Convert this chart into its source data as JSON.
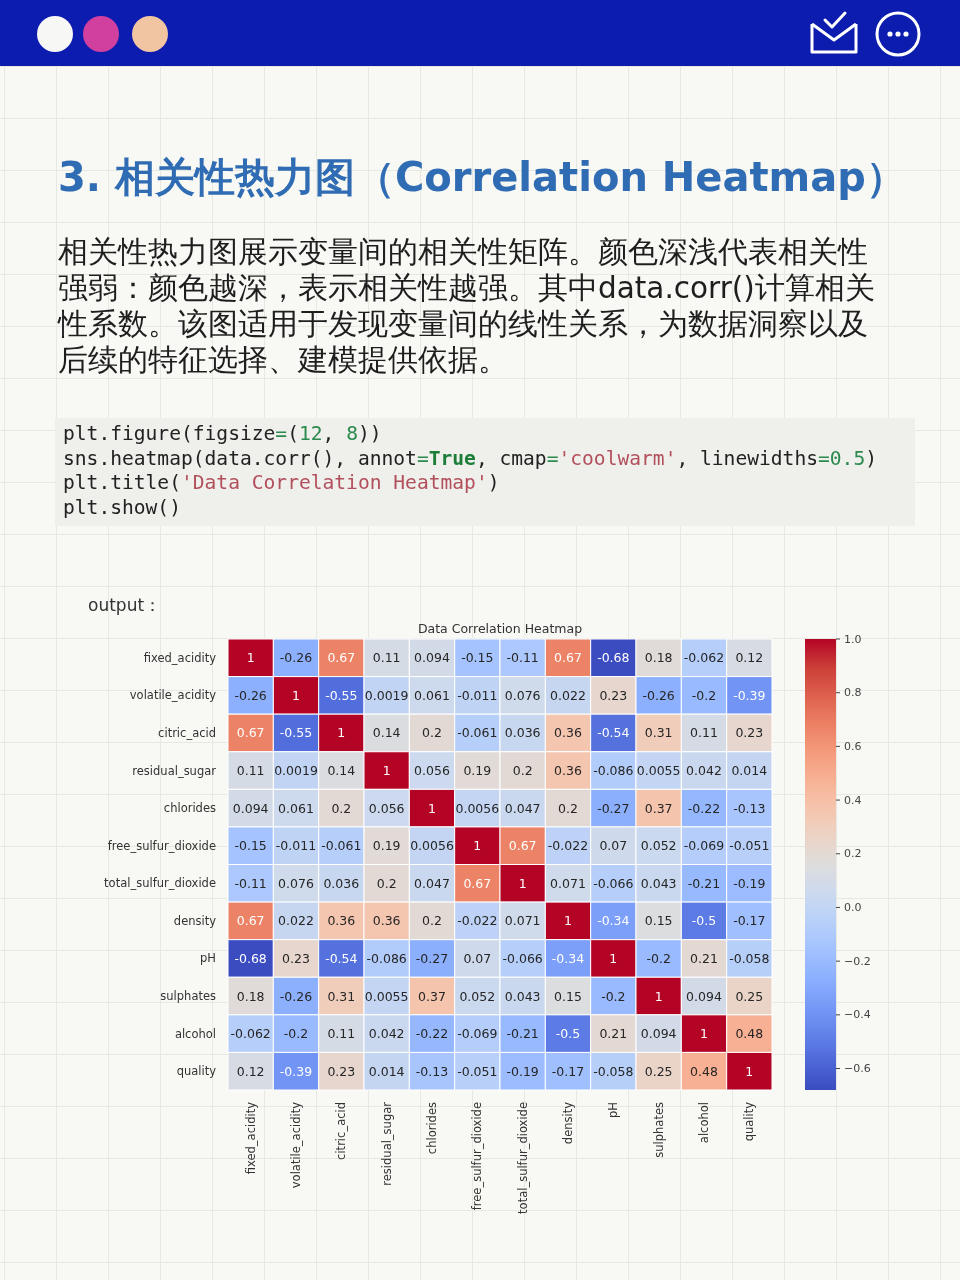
{
  "chart_data": {
    "type": "heatmap",
    "title": "Data Correlation Heatmap",
    "categories": [
      "fixed_acidity",
      "volatile_acidity",
      "citric_acid",
      "residual_sugar",
      "chlorides",
      "free_sulfur_dioxide",
      "total_sulfur_dioxide",
      "density",
      "pH",
      "sulphates",
      "alcohol",
      "quality"
    ],
    "y_categories": [
      "fixed_acidity",
      "volatile_acidity",
      "citric_acid",
      "residual_sugar",
      "chlorides",
      "free_sulfur_dioxide",
      "total_sulfur_dioxide",
      "density",
      "pH",
      "sulphates",
      "alcohol",
      "quality"
    ],
    "cells": [
      [
        1,
        -0.26,
        0.67,
        0.11,
        0.094,
        -0.15,
        -0.11,
        0.67,
        -0.68,
        0.18,
        -0.062,
        0.12
      ],
      [
        -0.26,
        1,
        -0.55,
        0.0019,
        0.061,
        -0.011,
        0.076,
        0.022,
        0.23,
        -0.26,
        -0.2,
        -0.39
      ],
      [
        0.67,
        -0.55,
        1,
        0.14,
        0.2,
        -0.061,
        0.036,
        0.36,
        -0.54,
        0.31,
        0.11,
        0.23
      ],
      [
        0.11,
        0.0019,
        0.14,
        1,
        0.056,
        0.19,
        0.2,
        0.36,
        -0.086,
        0.0055,
        0.042,
        0.014
      ],
      [
        0.094,
        0.061,
        0.2,
        0.056,
        1,
        0.0056,
        0.047,
        0.2,
        -0.27,
        0.37,
        -0.22,
        -0.13
      ],
      [
        -0.15,
        -0.011,
        -0.061,
        0.19,
        0.0056,
        1,
        0.67,
        -0.022,
        0.07,
        0.052,
        -0.069,
        -0.051
      ],
      [
        -0.11,
        0.076,
        0.036,
        0.2,
        0.047,
        0.67,
        1,
        0.071,
        -0.066,
        0.043,
        -0.21,
        -0.19
      ],
      [
        0.67,
        0.022,
        0.36,
        0.36,
        0.2,
        -0.022,
        0.071,
        1,
        -0.34,
        0.15,
        -0.5,
        -0.17
      ],
      [
        -0.68,
        0.23,
        -0.54,
        -0.086,
        -0.27,
        0.07,
        -0.066,
        -0.34,
        1,
        -0.2,
        0.21,
        -0.058
      ],
      [
        0.18,
        -0.26,
        0.31,
        0.0055,
        0.37,
        0.052,
        0.043,
        0.15,
        -0.2,
        1,
        0.094,
        0.25
      ],
      [
        -0.062,
        -0.2,
        0.11,
        0.042,
        -0.22,
        -0.069,
        -0.21,
        -0.5,
        0.21,
        0.094,
        1,
        0.48
      ],
      [
        0.12,
        -0.39,
        0.23,
        0.014,
        -0.13,
        -0.051,
        -0.19,
        -0.17,
        -0.058,
        0.25,
        0.48,
        1
      ]
    ],
    "clim": [
      -0.68,
      1
    ],
    "cticks": [
      {
        "value": 1.0,
        "label": "1.0"
      },
      0.8,
      0.6,
      0.4,
      0.2,
      {
        "value": 0,
        "label": "0.0"
      },
      {
        "value": -0.2,
        "label": "−0.2"
      },
      {
        "value": -0.4,
        "label": "−0.4"
      },
      {
        "value": -0.6,
        "label": "−0.6"
      }
    ],
    "data_labels": true,
    "annotations": [
      "3. 相关性热力图（Correlation Heatmap）",
      "相关性热力图展示变量间的相关性矩阵。颜色深浅代表相关性强弱：颜色越深，表示相关性越强。其中data.corr()计算相关性系数。该图适用于发现变量间的线性关系，为数据洞察以及后续的特征选择、建模提供依据。",
      "plt.figure(figsize=(12, 8))",
      "sns.heatmap(data.corr(), annot=True, cmap='coolwarm', linewidths=0.5)",
      "plt.title('Data Correlation Heatmap')",
      "plt.show()",
      "output："
    ]
  }
}
